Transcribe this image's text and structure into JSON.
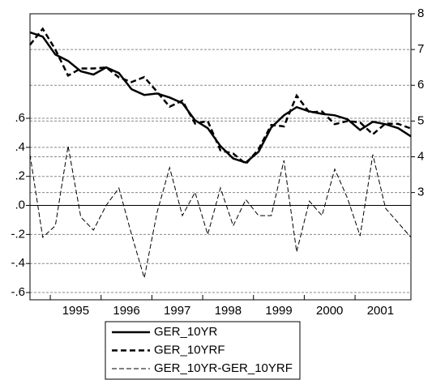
{
  "chart_data": {
    "type": "line",
    "x": [
      1994.6,
      1994.85,
      1995.1,
      1995.35,
      1995.6,
      1995.85,
      1996.1,
      1996.35,
      1996.6,
      1996.85,
      1997.1,
      1997.35,
      1997.6,
      1997.85,
      1998.1,
      1998.35,
      1998.6,
      1998.85,
      1999.1,
      1999.35,
      1999.6,
      1999.85,
      2000.1,
      2000.35,
      2000.6,
      2000.85,
      2001.1,
      2001.35,
      2001.6,
      2001.85,
      2002.1
    ],
    "series": [
      {
        "name": "GER_10YR",
        "color": "#000000",
        "axis": "y2",
        "values": [
          7.48,
          7.36,
          6.86,
          6.68,
          6.39,
          6.3,
          6.5,
          6.34,
          5.89,
          5.73,
          5.77,
          5.66,
          5.5,
          5.02,
          4.8,
          4.3,
          3.95,
          3.84,
          4.14,
          4.82,
          5.16,
          5.39,
          5.27,
          5.2,
          5.16,
          5.05,
          4.75,
          4.98,
          4.91,
          4.8,
          4.57
        ]
      },
      {
        "name": "GER_10YRF",
        "color": "#000000",
        "axis": "y2",
        "values": [
          7.13,
          7.58,
          7.0,
          6.27,
          6.47,
          6.47,
          6.5,
          6.22,
          6.09,
          6.23,
          5.82,
          5.4,
          5.57,
          4.93,
          5.0,
          4.18,
          4.09,
          3.8,
          4.21,
          4.89,
          4.85,
          5.71,
          5.24,
          5.27,
          4.91,
          5.0,
          4.96,
          4.63,
          4.93,
          4.92,
          4.79
        ]
      },
      {
        "name": "GER_10YR-GER_10YRF",
        "color": "#000000",
        "values": [
          0.35,
          -0.22,
          -0.14,
          0.41,
          -0.08,
          -0.17,
          0.0,
          0.12,
          -0.2,
          -0.5,
          -0.05,
          0.26,
          -0.07,
          0.09,
          -0.2,
          0.12,
          -0.14,
          0.04,
          -0.07,
          -0.07,
          0.31,
          -0.32,
          0.03,
          -0.07,
          0.25,
          0.05,
          -0.21,
          0.35,
          -0.02,
          -0.12,
          -0.22
        ]
      }
    ],
    "xlim": [
      1994.6,
      2002.1
    ],
    "xticks": [
      {
        "value": 1995.5,
        "label": "1995"
      },
      {
        "value": 1996.5,
        "label": "1996"
      },
      {
        "value": 1997.5,
        "label": "1997"
      },
      {
        "value": 1998.5,
        "label": "1998"
      },
      {
        "value": 1999.5,
        "label": "1999"
      },
      {
        "value": 2000.5,
        "label": "2000"
      },
      {
        "value": 2001.5,
        "label": "2001"
      }
    ],
    "ylim": [
      -0.65,
      1.32
    ],
    "yticks": [
      {
        "value": 0.6,
        "label": ".6"
      },
      {
        "value": 0.4,
        "label": ".4"
      },
      {
        "value": 0.2,
        "label": ".2"
      },
      {
        "value": 0,
        "label": ".0"
      },
      {
        "value": -0.2,
        "label": "-.2"
      },
      {
        "value": -0.4,
        "label": "-.4"
      },
      {
        "value": -0.6,
        "label": "-.6"
      }
    ],
    "y2lim": [
      0,
      8
    ],
    "y2ticks": [
      3,
      4,
      5,
      6,
      7,
      8
    ],
    "grid": true
  }
}
